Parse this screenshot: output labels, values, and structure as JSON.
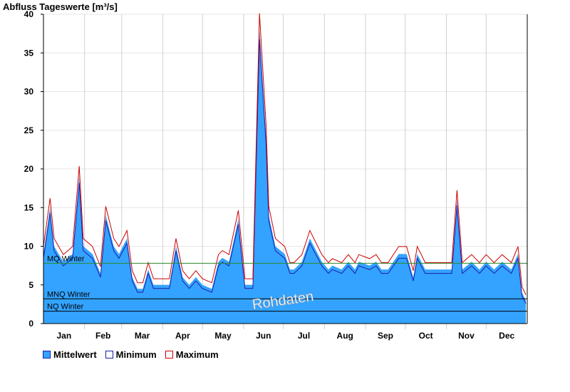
{
  "chart_data": {
    "type": "area",
    "title": "Abfluss Tageswerte [m³/s]",
    "ylim": [
      0,
      40
    ],
    "yticks": [
      0,
      5,
      10,
      15,
      20,
      25,
      30,
      35,
      40
    ],
    "months": [
      "Jan",
      "Feb",
      "Mar",
      "Apr",
      "May",
      "Jun",
      "Jul",
      "Aug",
      "Sep",
      "Oct",
      "Nov",
      "Dec"
    ],
    "grid": true,
    "legend_position": "bottom-left",
    "series": [
      {
        "name": "Mittelwert",
        "color": "#33a3ff",
        "style": "filled-area",
        "x": [
          0,
          5,
          8,
          15,
          22,
          27,
          30,
          37,
          43,
          47,
          53,
          57,
          63,
          67,
          71,
          75,
          79,
          83,
          88,
          95,
          100,
          105,
          110,
          115,
          120,
          127,
          132,
          135,
          140,
          147,
          152,
          158,
          163,
          168,
          170,
          175,
          182,
          186,
          189,
          195,
          201,
          210,
          215,
          218,
          225,
          230,
          235,
          238,
          246,
          251,
          255,
          260,
          268,
          274,
          279,
          282,
          288,
          295,
          304,
          308,
          312,
          316,
          323,
          329,
          334,
          340,
          346,
          353,
          358,
          361,
          364
        ],
        "values": [
          9,
          15,
          10,
          8,
          9,
          19,
          10,
          9,
          6.5,
          14,
          10,
          9,
          11,
          6,
          4.5,
          4.5,
          7,
          5,
          5,
          5,
          10,
          6,
          5,
          6,
          5,
          4.5,
          8,
          8.5,
          8,
          13.5,
          5,
          5,
          38,
          24,
          14,
          10,
          9,
          7,
          7,
          8,
          11,
          8,
          7,
          7.5,
          7,
          8,
          7,
          8,
          7.5,
          8,
          7,
          7,
          9,
          9,
          6,
          9,
          7,
          7,
          7,
          7,
          16,
          7,
          8,
          7,
          8,
          7,
          8,
          7,
          9,
          4,
          3
        ]
      },
      {
        "name": "Minimum",
        "color": "#1e1eaa",
        "style": "line",
        "offset": -0.35
      },
      {
        "name": "Maximum",
        "color": "#cc0000",
        "style": "line",
        "offset": 0.6
      }
    ],
    "reference_lines": [
      {
        "label": "MQ Winter",
        "value": 7.8,
        "color": "#2a8a2a"
      },
      {
        "label": "MNQ Winter",
        "value": 3.2,
        "color": "#000000"
      },
      {
        "label": "NQ Winter",
        "value": 1.6,
        "color": "#000000"
      }
    ],
    "watermark": "Rohdaten"
  }
}
